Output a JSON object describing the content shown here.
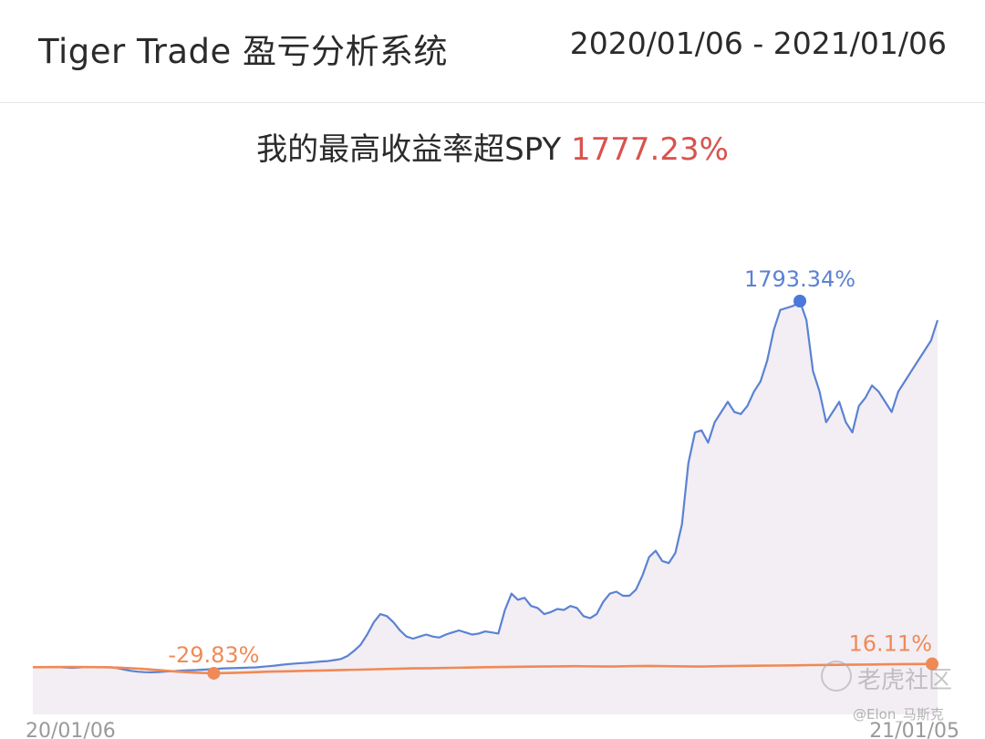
{
  "header": {
    "title": "Tiger Trade 盈亏分析系统",
    "date_range": "2020/01/06 - 2021/01/06"
  },
  "headline": {
    "label": "我的最高收益率超SPY",
    "value": "1777.23%"
  },
  "watermark": {
    "brand": "老虎社区",
    "user": "@Elon_马斯克"
  },
  "colors": {
    "my_line": "#5b82d3",
    "spy_line": "#ef8a56",
    "max_marker": "#4a78db",
    "headline_value": "#d9534f",
    "area_fill": "#f3eef4"
  },
  "chart_data": {
    "type": "line",
    "x_start_label": "20/01/06",
    "x_end_label": "21/01/05",
    "series": [
      {
        "values": [
          0,
          1,
          1,
          1,
          0,
          -2,
          -3,
          -2,
          0,
          1,
          1,
          0,
          -1,
          -5,
          -12,
          -18,
          -22,
          -24,
          -25,
          -24,
          -22,
          -20,
          -18,
          -16,
          -15,
          -14,
          -12,
          -10,
          -8,
          -6,
          -5,
          -4,
          -3,
          -2,
          -1,
          2,
          5,
          8,
          12,
          15,
          18,
          20,
          22,
          25,
          28,
          30,
          35,
          40,
          55,
          80,
          110,
          160,
          220,
          260,
          250,
          220,
          180,
          150,
          140,
          150,
          160,
          150,
          145,
          160,
          170,
          180,
          170,
          160,
          165,
          175,
          170,
          165,
          280,
          360,
          330,
          340,
          300,
          290,
          260,
          270,
          285,
          280,
          300,
          290,
          250,
          240,
          260,
          320,
          360,
          370,
          350,
          350,
          380,
          450,
          540,
          570,
          520,
          510,
          560,
          700,
          1000,
          1150,
          1160,
          1100,
          1200,
          1250,
          1300,
          1250,
          1240,
          1280,
          1350,
          1400,
          1500,
          1650,
          1750,
          1760,
          1770,
          1793.34,
          1700,
          1450,
          1350,
          1200,
          1250,
          1300,
          1200,
          1150,
          1280,
          1320,
          1380,
          1350,
          1300,
          1250,
          1350,
          1400,
          1450,
          1500,
          1550,
          1600,
          1700
        ]
      },
      {
        "values": [
          0,
          0.5,
          1,
          0.5,
          0,
          -3,
          -8,
          -15,
          -22,
          -27,
          -29.83,
          -28,
          -25,
          -22,
          -20,
          -18,
          -16,
          -14,
          -12,
          -10,
          -8,
          -6,
          -5,
          -3,
          -2,
          0,
          1,
          2,
          3,
          4,
          5,
          4,
          3,
          5,
          6,
          5,
          4,
          3,
          5,
          6,
          7,
          8,
          9,
          10,
          11,
          12,
          13,
          14,
          15,
          15.5,
          16.11
        ]
      }
    ],
    "annotations": [
      {
        "series": 0,
        "label": "1793.34%",
        "value": 1793.34
      },
      {
        "series": 1,
        "label": "-29.83%",
        "value": -29.83
      },
      {
        "series": 1,
        "label": "16.11%",
        "value": 16.11
      }
    ],
    "grid": false,
    "legend": "none"
  }
}
